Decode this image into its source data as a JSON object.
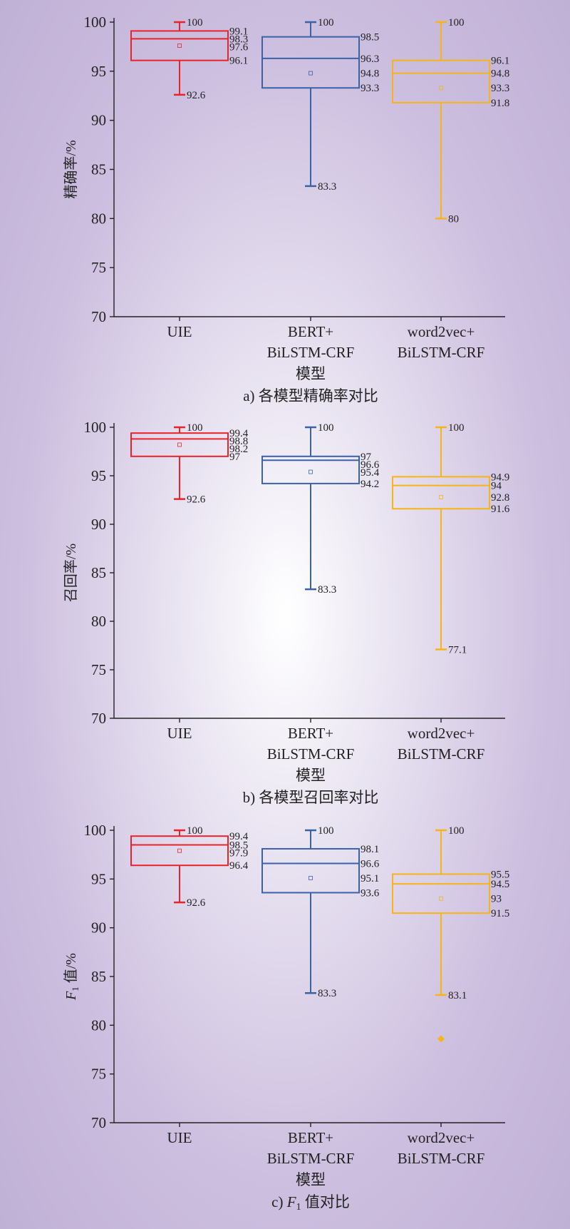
{
  "chart_data": [
    {
      "type": "box",
      "caption": "a) 各模型精确率对比",
      "ylabel": "精确率/%",
      "xlabel": "模型",
      "ylim": [
        70,
        100
      ],
      "yticks": [
        70,
        75,
        80,
        85,
        90,
        95,
        100
      ],
      "categories": [
        [
          "UIE"
        ],
        [
          "BERT+",
          "BiLSTM-CRF"
        ],
        [
          "word2vec+",
          "BiLSTM-CRF"
        ]
      ],
      "boxes": [
        {
          "color": "#e8242a",
          "whisker_low": 92.6,
          "q1": 96.1,
          "median": 98.3,
          "mean": 97.6,
          "q3": 99.1,
          "whisker_high": 100,
          "outliers": []
        },
        {
          "color": "#3a62a7",
          "whisker_low": 83.3,
          "q1": 93.3,
          "median": 96.3,
          "mean": 94.8,
          "q3": 98.5,
          "whisker_high": 100,
          "outliers": []
        },
        {
          "color": "#f7b417",
          "whisker_low": 80,
          "q1": 91.8,
          "median": 94.8,
          "mean": 93.3,
          "q3": 96.1,
          "whisker_high": 100,
          "outliers": []
        }
      ]
    },
    {
      "type": "box",
      "caption": "b) 各模型召回率对比",
      "ylabel": "召回率/%",
      "xlabel": "模型",
      "ylim": [
        70,
        100
      ],
      "yticks": [
        70,
        75,
        80,
        85,
        90,
        95,
        100
      ],
      "categories": [
        [
          "UIE"
        ],
        [
          "BERT+",
          "BiLSTM-CRF"
        ],
        [
          "word2vec+",
          "BiLSTM-CRF"
        ]
      ],
      "boxes": [
        {
          "color": "#e8242a",
          "whisker_low": 92.6,
          "q1": 97,
          "median": 98.8,
          "mean": 98.2,
          "q3": 99.4,
          "whisker_high": 100,
          "outliers": []
        },
        {
          "color": "#3a62a7",
          "whisker_low": 83.3,
          "q1": 94.2,
          "median": 96.6,
          "mean": 95.4,
          "q3": 97,
          "whisker_high": 100,
          "outliers": []
        },
        {
          "color": "#f7b417",
          "whisker_low": 77.1,
          "q1": 91.6,
          "median": 94,
          "mean": 92.8,
          "q3": 94.9,
          "whisker_high": 100,
          "outliers": []
        }
      ]
    },
    {
      "type": "box",
      "caption_prefix": "c) ",
      "caption_italic": "F",
      "caption_sub": "1",
      "caption_suffix": " 值对比",
      "ylabel_italic": "F",
      "ylabel_sub": "1",
      "ylabel_rest": " 值/%",
      "xlabel": "模型",
      "ylim": [
        70,
        100
      ],
      "yticks": [
        70,
        75,
        80,
        85,
        90,
        95,
        100
      ],
      "categories": [
        [
          "UIE"
        ],
        [
          "BERT+",
          "BiLSTM-CRF"
        ],
        [
          "word2vec+",
          "BiLSTM-CRF"
        ]
      ],
      "boxes": [
        {
          "color": "#e8242a",
          "whisker_low": 92.6,
          "q1": 96.4,
          "median": 98.5,
          "mean": 97.9,
          "q3": 99.4,
          "whisker_high": 100,
          "outliers": []
        },
        {
          "color": "#3a62a7",
          "whisker_low": 83.3,
          "q1": 93.6,
          "median": 96.6,
          "mean": 95.1,
          "q3": 98.1,
          "whisker_high": 100,
          "outliers": []
        },
        {
          "color": "#f7b417",
          "whisker_low": 83.1,
          "q1": 91.5,
          "median": 94.5,
          "mean": 93,
          "q3": 95.5,
          "whisker_high": 100,
          "outliers": [
            78.6
          ]
        }
      ]
    }
  ]
}
